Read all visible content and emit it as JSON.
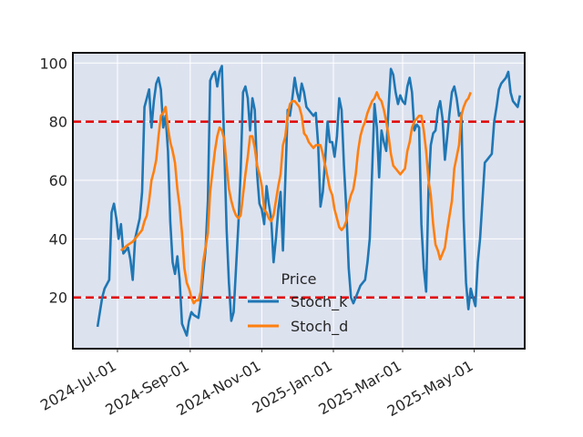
{
  "chart_data": {
    "type": "line",
    "title": "",
    "xlabel": "",
    "ylabel": "",
    "x_start": "2024-06-14",
    "x_end": "2025-05-26",
    "xlim": [
      "2024-05-24",
      "2025-06-13"
    ],
    "ylim": [
      2.5,
      103.5
    ],
    "y_ticks": [
      20,
      40,
      60,
      80,
      100
    ],
    "x_ticks": [
      {
        "date": "2024-07-01",
        "label": "2024-Jul-01"
      },
      {
        "date": "2024-09-01",
        "label": "2024-Sep-01"
      },
      {
        "date": "2024-11-01",
        "label": "2024-Nov-01"
      },
      {
        "date": "2025-01-01",
        "label": "2025-Jan-01"
      },
      {
        "date": "2025-03-01",
        "label": "2025-Mar-01"
      },
      {
        "date": "2025-05-01",
        "label": "2025-May-01"
      }
    ],
    "grid": true,
    "legend": {
      "title": "Price",
      "placement": "lower center"
    },
    "hlines": [
      {
        "y": 80,
        "color": "#e00000",
        "style": "dashed"
      },
      {
        "y": 20,
        "color": "#e00000",
        "style": "dashed"
      }
    ],
    "series": [
      {
        "name": "Stoch_k",
        "color": "#1f77b4",
        "points": [
          [
            0,
            10
          ],
          [
            2,
            20
          ],
          [
            3,
            23
          ],
          [
            5,
            26
          ],
          [
            6,
            49
          ],
          [
            7,
            52
          ],
          [
            8,
            47
          ],
          [
            9,
            40
          ],
          [
            10,
            45
          ],
          [
            11,
            35
          ],
          [
            13,
            37
          ],
          [
            14,
            33
          ],
          [
            15,
            26
          ],
          [
            16,
            40
          ],
          [
            18,
            47
          ],
          [
            19,
            56
          ],
          [
            20,
            85
          ],
          [
            21,
            88
          ],
          [
            22,
            91
          ],
          [
            23,
            78
          ],
          [
            24,
            87
          ],
          [
            25,
            93
          ],
          [
            26,
            95
          ],
          [
            27,
            91
          ],
          [
            28,
            78
          ],
          [
            29,
            82
          ],
          [
            30,
            70
          ],
          [
            31,
            46
          ],
          [
            32,
            32
          ],
          [
            33,
            28
          ],
          [
            34,
            34
          ],
          [
            35,
            26
          ],
          [
            36,
            11
          ],
          [
            37,
            9
          ],
          [
            38,
            7
          ],
          [
            39,
            12
          ],
          [
            40,
            15
          ],
          [
            41,
            14
          ],
          [
            43,
            13
          ],
          [
            44,
            19
          ],
          [
            45,
            28
          ],
          [
            46,
            36
          ],
          [
            47,
            53
          ],
          [
            48,
            94
          ],
          [
            49,
            96
          ],
          [
            50,
            97
          ],
          [
            51,
            92
          ],
          [
            52,
            97
          ],
          [
            53,
            99
          ],
          [
            54,
            71
          ],
          [
            55,
            43
          ],
          [
            56,
            25
          ],
          [
            57,
            12
          ],
          [
            58,
            15
          ],
          [
            59,
            30
          ],
          [
            60,
            45
          ],
          [
            61,
            63
          ],
          [
            62,
            90
          ],
          [
            63,
            92
          ],
          [
            64,
            88
          ],
          [
            65,
            77
          ],
          [
            66,
            88
          ],
          [
            67,
            84
          ],
          [
            68,
            62
          ],
          [
            69,
            52
          ],
          [
            70,
            50
          ],
          [
            71,
            45
          ],
          [
            72,
            58
          ],
          [
            73,
            52
          ],
          [
            74,
            47
          ],
          [
            75,
            32
          ],
          [
            76,
            40
          ],
          [
            77,
            50
          ],
          [
            78,
            56
          ],
          [
            79,
            36
          ],
          [
            80,
            60
          ],
          [
            81,
            84
          ],
          [
            82,
            82
          ],
          [
            83,
            88
          ],
          [
            84,
            95
          ],
          [
            85,
            90
          ],
          [
            86,
            87
          ],
          [
            87,
            93
          ],
          [
            88,
            90
          ],
          [
            89,
            85
          ],
          [
            91,
            83
          ],
          [
            92,
            82
          ],
          [
            93,
            83
          ],
          [
            94,
            72
          ],
          [
            95,
            51
          ],
          [
            96,
            56
          ],
          [
            97,
            67
          ],
          [
            98,
            80
          ],
          [
            99,
            73
          ],
          [
            100,
            73
          ],
          [
            101,
            68
          ],
          [
            102,
            75
          ],
          [
            103,
            88
          ],
          [
            104,
            84
          ],
          [
            105,
            65
          ],
          [
            106,
            50
          ],
          [
            107,
            30
          ],
          [
            108,
            20
          ],
          [
            109,
            18
          ],
          [
            110,
            20
          ],
          [
            111,
            22
          ],
          [
            112,
            24
          ],
          [
            113,
            25
          ],
          [
            114,
            26
          ],
          [
            115,
            32
          ],
          [
            116,
            40
          ],
          [
            117,
            63
          ],
          [
            118,
            86
          ],
          [
            119,
            78
          ],
          [
            120,
            61
          ],
          [
            121,
            77
          ],
          [
            122,
            73
          ],
          [
            123,
            70
          ],
          [
            124,
            85
          ],
          [
            125,
            98
          ],
          [
            126,
            96
          ],
          [
            127,
            90
          ],
          [
            128,
            86
          ],
          [
            129,
            89
          ],
          [
            130,
            87
          ],
          [
            131,
            86
          ],
          [
            132,
            92
          ],
          [
            133,
            95
          ],
          [
            134,
            90
          ],
          [
            135,
            77
          ],
          [
            136,
            79
          ],
          [
            137,
            78
          ],
          [
            138,
            45
          ],
          [
            139,
            30
          ],
          [
            140,
            22
          ],
          [
            141,
            57
          ],
          [
            142,
            72
          ],
          [
            143,
            76
          ],
          [
            144,
            77
          ],
          [
            145,
            84
          ],
          [
            146,
            87
          ],
          [
            147,
            81
          ],
          [
            148,
            67
          ],
          [
            149,
            75
          ],
          [
            150,
            83
          ],
          [
            151,
            90
          ],
          [
            152,
            92
          ],
          [
            153,
            88
          ],
          [
            154,
            82
          ],
          [
            155,
            83
          ],
          [
            156,
            47
          ],
          [
            157,
            25
          ],
          [
            158,
            16
          ],
          [
            159,
            23
          ],
          [
            160,
            20
          ],
          [
            161,
            17
          ],
          [
            162,
            32
          ],
          [
            163,
            40
          ],
          [
            164,
            53
          ],
          [
            165,
            66
          ],
          [
            166,
            67
          ],
          [
            167,
            68
          ],
          [
            168,
            69
          ],
          [
            169,
            80
          ],
          [
            170,
            85
          ],
          [
            171,
            91
          ],
          [
            172,
            93
          ],
          [
            173,
            94
          ],
          [
            174,
            95
          ],
          [
            175,
            97
          ],
          [
            176,
            90
          ],
          [
            177,
            87
          ],
          [
            178,
            86
          ],
          [
            179,
            85
          ],
          [
            180,
            89
          ]
        ]
      },
      {
        "name": "Stoch_d",
        "color": "#ff7f0e",
        "points": [
          [
            10,
            36
          ],
          [
            13,
            38
          ],
          [
            15,
            39
          ],
          [
            17,
            41
          ],
          [
            19,
            43
          ],
          [
            20,
            46
          ],
          [
            21,
            48
          ],
          [
            22,
            53
          ],
          [
            23,
            60
          ],
          [
            24,
            63
          ],
          [
            25,
            67
          ],
          [
            26,
            75
          ],
          [
            27,
            82
          ],
          [
            28,
            83
          ],
          [
            29,
            85
          ],
          [
            30,
            78
          ],
          [
            31,
            73
          ],
          [
            32,
            70
          ],
          [
            33,
            66
          ],
          [
            34,
            57
          ],
          [
            35,
            51
          ],
          [
            36,
            42
          ],
          [
            37,
            30
          ],
          [
            38,
            25
          ],
          [
            39,
            23
          ],
          [
            40,
            20
          ],
          [
            41,
            18
          ],
          [
            42,
            19
          ],
          [
            43,
            19
          ],
          [
            44,
            22
          ],
          [
            45,
            32
          ],
          [
            46,
            37
          ],
          [
            47,
            42
          ],
          [
            48,
            56
          ],
          [
            49,
            63
          ],
          [
            50,
            70
          ],
          [
            51,
            75
          ],
          [
            52,
            78
          ],
          [
            53,
            77
          ],
          [
            54,
            74
          ],
          [
            55,
            65
          ],
          [
            56,
            57
          ],
          [
            57,
            53
          ],
          [
            58,
            50
          ],
          [
            59,
            48
          ],
          [
            60,
            47
          ],
          [
            61,
            48
          ],
          [
            62,
            55
          ],
          [
            63,
            62
          ],
          [
            64,
            68
          ],
          [
            65,
            75
          ],
          [
            66,
            75
          ],
          [
            67,
            71
          ],
          [
            68,
            65
          ],
          [
            69,
            62
          ],
          [
            70,
            58
          ],
          [
            71,
            50
          ],
          [
            72,
            49
          ],
          [
            73,
            47
          ],
          [
            74,
            46
          ],
          [
            75,
            48
          ],
          [
            76,
            53
          ],
          [
            77,
            58
          ],
          [
            78,
            62
          ],
          [
            79,
            72
          ],
          [
            80,
            75
          ],
          [
            81,
            82
          ],
          [
            82,
            86
          ],
          [
            83,
            87
          ],
          [
            84,
            87
          ],
          [
            85,
            86
          ],
          [
            86,
            85
          ],
          [
            87,
            82
          ],
          [
            88,
            76
          ],
          [
            89,
            75
          ],
          [
            90,
            73
          ],
          [
            91,
            72
          ],
          [
            92,
            71
          ],
          [
            93,
            72
          ],
          [
            94,
            72
          ],
          [
            95,
            72
          ],
          [
            96,
            69
          ],
          [
            97,
            65
          ],
          [
            98,
            61
          ],
          [
            99,
            57
          ],
          [
            100,
            55
          ],
          [
            101,
            50
          ],
          [
            102,
            47
          ],
          [
            103,
            44
          ],
          [
            104,
            43
          ],
          [
            105,
            44
          ],
          [
            106,
            46
          ],
          [
            107,
            52
          ],
          [
            108,
            55
          ],
          [
            109,
            57
          ],
          [
            110,
            62
          ],
          [
            111,
            70
          ],
          [
            112,
            75
          ],
          [
            113,
            78
          ],
          [
            114,
            80
          ],
          [
            115,
            83
          ],
          [
            116,
            85
          ],
          [
            117,
            87
          ],
          [
            118,
            88
          ],
          [
            119,
            90
          ],
          [
            120,
            88
          ],
          [
            121,
            87
          ],
          [
            122,
            84
          ],
          [
            123,
            80
          ],
          [
            124,
            75
          ],
          [
            125,
            69
          ],
          [
            126,
            65
          ],
          [
            127,
            64
          ],
          [
            128,
            63
          ],
          [
            129,
            62
          ],
          [
            130,
            63
          ],
          [
            131,
            64
          ],
          [
            132,
            70
          ],
          [
            133,
            73
          ],
          [
            134,
            78
          ],
          [
            135,
            80
          ],
          [
            136,
            81
          ],
          [
            137,
            82
          ],
          [
            138,
            82
          ],
          [
            139,
            77
          ],
          [
            140,
            70
          ],
          [
            141,
            60
          ],
          [
            142,
            55
          ],
          [
            143,
            45
          ],
          [
            144,
            38
          ],
          [
            145,
            36
          ],
          [
            146,
            33
          ],
          [
            147,
            35
          ],
          [
            148,
            37
          ],
          [
            149,
            43
          ],
          [
            150,
            48
          ],
          [
            151,
            53
          ],
          [
            152,
            64
          ],
          [
            153,
            68
          ],
          [
            154,
            72
          ],
          [
            155,
            82
          ],
          [
            156,
            85
          ],
          [
            157,
            87
          ],
          [
            158,
            88
          ],
          [
            159,
            90
          ]
        ]
      }
    ]
  }
}
